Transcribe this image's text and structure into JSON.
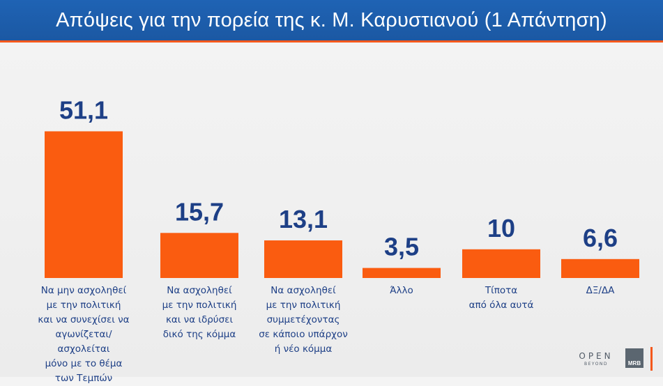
{
  "header": {
    "title": "Απόψεις για την πορεία της κ. Μ. Καρυστιανού (1 Απάντηση)"
  },
  "colors": {
    "bar": "#fa5c10",
    "value_text": "#1d3f86",
    "header_bg": "#1f63b4",
    "accent": "#f4581c"
  },
  "chart_data": {
    "type": "bar",
    "title": "Απόψεις για την πορεία της κ. Μ. Καρυστιανού (1 Απάντηση)",
    "categories": [
      [
        "Να μην ασχοληθεί",
        "με την πολιτική",
        "και να συνεχίσει να",
        "αγωνίζεται/ασχολείται",
        "μόνο με το θέμα",
        "των Τεμπών"
      ],
      [
        "Να ασχοληθεί",
        "με την πολιτική",
        "και να ιδρύσει",
        "δικό της κόμμα"
      ],
      [
        "Να ασχοληθεί",
        "με την πολιτική",
        "συμμετέχοντας",
        "σε κάποιο υπάρχον",
        "ή νέο κόμμα"
      ],
      [
        "Άλλο"
      ],
      [
        "Τίποτα",
        "από όλα αυτά"
      ],
      [
        "ΔΞ/ΔΑ"
      ]
    ],
    "values": [
      51.1,
      15.7,
      13.1,
      3.5,
      10,
      6.6
    ],
    "value_labels": [
      "51,1",
      "15,7",
      "13,1",
      "3,5",
      "10",
      "6,6"
    ]
  },
  "logos": {
    "open": "OPEN",
    "open_sub": "BEYOND",
    "mrb": "MRB"
  }
}
